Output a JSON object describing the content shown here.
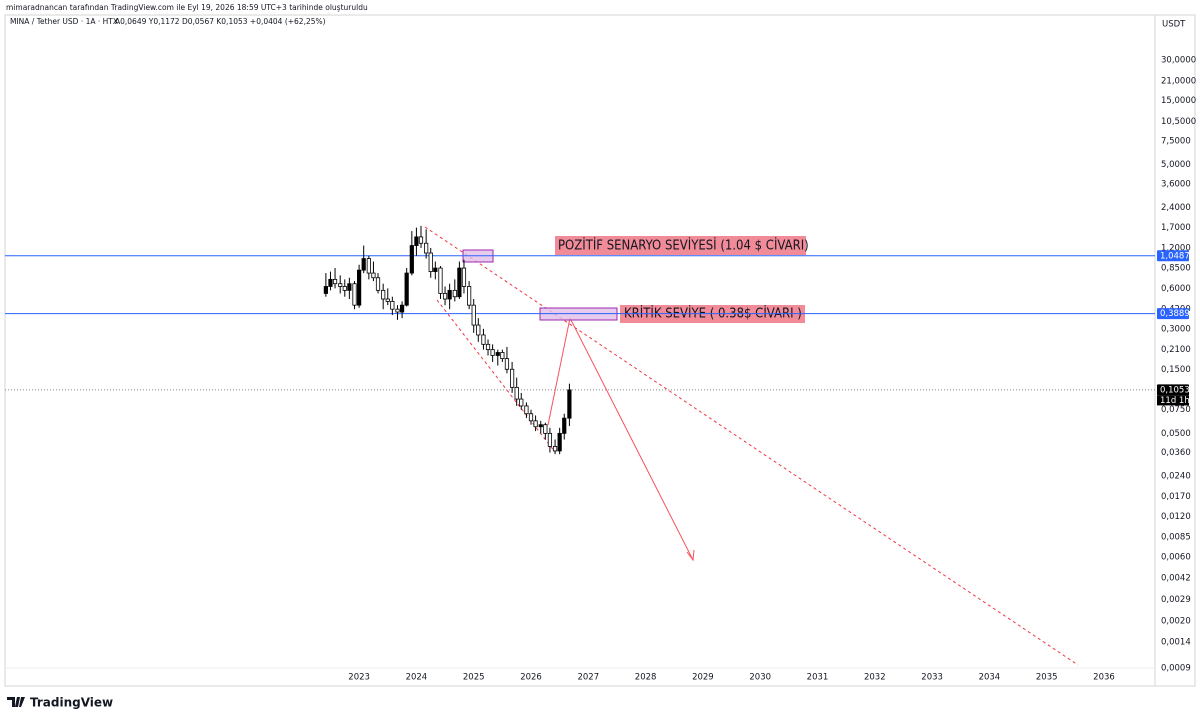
{
  "chart_data": {
    "type": "candlestick",
    "credit": "mimaradnancan tarafından TradingView.com ile Eyl 19, 2026 18:59 UTC+3 tarihinde oluşturuldu",
    "symbol": "MINA / Tether USD · 1A · HTX",
    "ohlc_text": "A0,0649 Y0,1172 D0,0567 K0,1053 +0,0404 (+62,25%)",
    "currency": "USDT",
    "brand": "TradingView",
    "annotations": [
      "POZİTİF SENARYO SEVİYESİ (1.04 $ CİVARI)",
      "KRİTİK SEVİYE ( 0.38$ CİVARI )"
    ],
    "log_scale": true,
    "up_color": "#000000",
    "down_color": "#ffffff",
    "x": [
      2022.42,
      2022.5,
      2022.58,
      2022.67,
      2022.75,
      2022.83,
      2022.92,
      2023.0,
      2023.08,
      2023.17,
      2023.25,
      2023.33,
      2023.42,
      2023.5,
      2023.58,
      2023.67,
      2023.75,
      2023.83,
      2023.92,
      2024.0,
      2024.08,
      2024.17,
      2024.25,
      2024.33,
      2024.42,
      2024.5,
      2024.58,
      2024.67,
      2024.75,
      2024.83,
      2024.92,
      2025.0,
      2025.08,
      2025.17,
      2025.25,
      2025.33,
      2025.42,
      2025.5,
      2025.58,
      2025.67,
      2025.75,
      2025.83,
      2025.92,
      2026.0,
      2026.08,
      2026.17,
      2026.25,
      2026.33,
      2026.42,
      2026.5,
      2026.58,
      2026.67
    ],
    "open": [
      0.55,
      0.62,
      0.7,
      0.65,
      0.62,
      0.58,
      0.65,
      0.45,
      0.82,
      1.0,
      0.78,
      0.72,
      0.58,
      0.5,
      0.48,
      0.42,
      0.4,
      0.45,
      0.78,
      1.25,
      1.45,
      1.3,
      1.1,
      0.8,
      0.85,
      0.55,
      0.5,
      0.58,
      0.52,
      0.85,
      0.62,
      0.45,
      0.32,
      0.27,
      0.23,
      0.21,
      0.19,
      0.2,
      0.18,
      0.15,
      0.11,
      0.09,
      0.08,
      0.07,
      0.062,
      0.056,
      0.058,
      0.05,
      0.04,
      0.037,
      0.05,
      0.0649
    ],
    "high": [
      0.78,
      0.8,
      0.85,
      0.75,
      0.7,
      0.72,
      0.68,
      0.9,
      1.25,
      1.05,
      0.95,
      0.78,
      0.65,
      0.6,
      0.52,
      0.45,
      0.48,
      0.85,
      1.6,
      1.7,
      1.75,
      1.65,
      1.2,
      0.95,
      0.88,
      0.62,
      0.65,
      0.7,
      0.95,
      0.98,
      0.68,
      0.5,
      0.36,
      0.3,
      0.25,
      0.23,
      0.21,
      0.21,
      0.22,
      0.17,
      0.13,
      0.1,
      0.085,
      0.075,
      0.068,
      0.062,
      0.06,
      0.055,
      0.045,
      0.055,
      0.07,
      0.1172
    ],
    "low": [
      0.52,
      0.58,
      0.6,
      0.55,
      0.52,
      0.5,
      0.42,
      0.43,
      0.78,
      0.7,
      0.68,
      0.55,
      0.42,
      0.45,
      0.38,
      0.35,
      0.36,
      0.44,
      0.75,
      1.05,
      1.2,
      1.0,
      0.72,
      0.7,
      0.5,
      0.45,
      0.42,
      0.48,
      0.5,
      0.55,
      0.42,
      0.28,
      0.24,
      0.21,
      0.19,
      0.17,
      0.16,
      0.17,
      0.14,
      0.1,
      0.08,
      0.075,
      0.065,
      0.058,
      0.052,
      0.05,
      0.045,
      0.036,
      0.035,
      0.035,
      0.045,
      0.0567
    ],
    "close": [
      0.62,
      0.7,
      0.65,
      0.62,
      0.58,
      0.65,
      0.45,
      0.82,
      1.0,
      0.78,
      0.72,
      0.58,
      0.5,
      0.48,
      0.42,
      0.4,
      0.45,
      0.78,
      1.25,
      1.45,
      1.3,
      1.1,
      0.8,
      0.85,
      0.55,
      0.5,
      0.58,
      0.52,
      0.85,
      0.62,
      0.45,
      0.32,
      0.27,
      0.23,
      0.21,
      0.19,
      0.2,
      0.18,
      0.15,
      0.11,
      0.09,
      0.08,
      0.07,
      0.062,
      0.056,
      0.058,
      0.05,
      0.04,
      0.037,
      0.05,
      0.0649,
      0.1053
    ],
    "xlim": [
      2016.82,
      2036.89
    ],
    "xticks": [
      2023,
      2024,
      2025,
      2026,
      2027,
      2028,
      2029,
      2030,
      2031,
      2032,
      2033,
      2034,
      2035,
      2036
    ],
    "ylim": [
      0.00067,
      65
    ],
    "yticks": [
      {
        "value": 30,
        "label": "30,0000"
      },
      {
        "value": 21,
        "label": "21,0000"
      },
      {
        "value": 15,
        "label": "15,0000"
      },
      {
        "value": 10.5,
        "label": "10,5000"
      },
      {
        "value": 7.5,
        "label": "7,5000"
      },
      {
        "value": 5,
        "label": "5,0000"
      },
      {
        "value": 3.6,
        "label": "3,6000"
      },
      {
        "value": 2.4,
        "label": "2,4000"
      },
      {
        "value": 1.7,
        "label": "1,7000"
      },
      {
        "value": 1.2,
        "label": "1,2000"
      },
      {
        "value": 0.85,
        "label": "0,8500"
      },
      {
        "value": 0.6,
        "label": "0,6000"
      },
      {
        "value": 0.42,
        "label": "0,4200"
      },
      {
        "value": 0.3,
        "label": "0,3000"
      },
      {
        "value": 0.21,
        "label": "0,2100"
      },
      {
        "value": 0.15,
        "label": "0,1500"
      },
      {
        "value": 0.075,
        "label": "0,0750"
      },
      {
        "value": 0.05,
        "label": "0,0500"
      },
      {
        "value": 0.036,
        "label": "0,0360"
      },
      {
        "value": 0.024,
        "label": "0,0240"
      },
      {
        "value": 0.017,
        "label": "0,0170"
      },
      {
        "value": 0.012,
        "label": "0,0120"
      },
      {
        "value": 0.0085,
        "label": "0,0085"
      },
      {
        "value": 0.006,
        "label": "0,0060"
      },
      {
        "value": 0.0042,
        "label": "0,0042"
      },
      {
        "value": 0.0029,
        "label": "0,0029"
      },
      {
        "value": 0.002,
        "label": "0,0020"
      },
      {
        "value": 0.0014,
        "label": "0,0014"
      },
      {
        "value": 0.0009,
        "label": "0,0009"
      }
    ],
    "price_labels": [
      {
        "value": 1.0487,
        "label": "1,0487",
        "color": "#2962ff"
      },
      {
        "value": 0.3889,
        "label": "0,3889",
        "color": "#2962ff"
      },
      {
        "value": 0.1053,
        "label": "0,1053",
        "color": "#000000"
      }
    ],
    "countdown": "11d 1h"
  }
}
